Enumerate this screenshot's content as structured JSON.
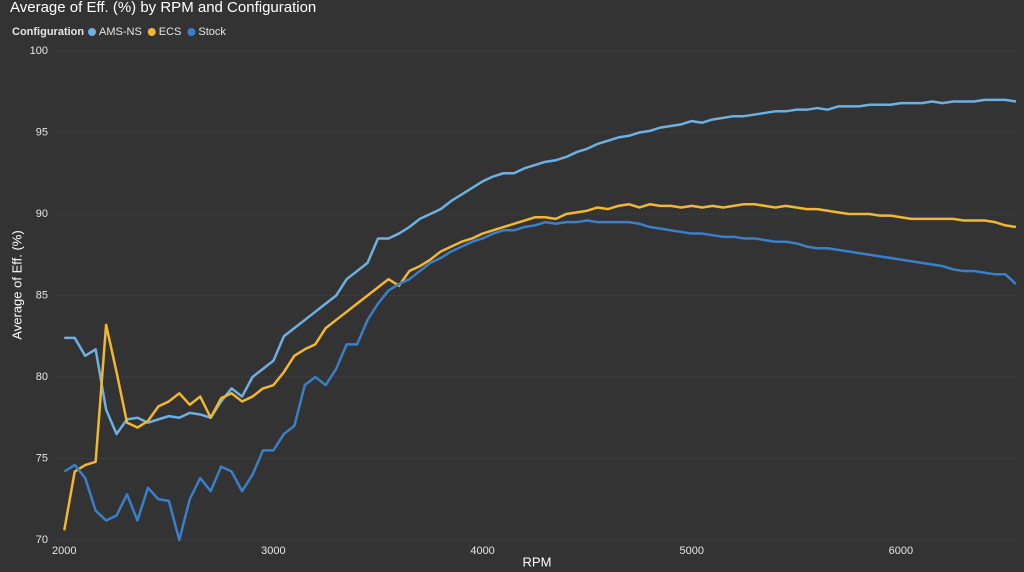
{
  "chart_data": {
    "type": "line",
    "title": "Average of Eff. (%) by RPM and Configuration",
    "legend_title": "Configuration",
    "x_label": "RPM",
    "y_label": "Average of Eff. (%)",
    "xlim": [
      1970,
      6560
    ],
    "ylim": [
      70,
      100
    ],
    "xticks": [
      2000,
      3000,
      4000,
      5000,
      6000
    ],
    "yticks": [
      70,
      75,
      80,
      85,
      90,
      95,
      100
    ],
    "grid": true,
    "x": [
      2000,
      2050,
      2100,
      2150,
      2200,
      2250,
      2300,
      2350,
      2400,
      2450,
      2500,
      2550,
      2600,
      2650,
      2700,
      2750,
      2800,
      2850,
      2900,
      2950,
      3000,
      3050,
      3100,
      3150,
      3200,
      3250,
      3300,
      3350,
      3400,
      3450,
      3500,
      3550,
      3600,
      3650,
      3700,
      3750,
      3800,
      3850,
      3900,
      3950,
      4000,
      4050,
      4100,
      4150,
      4200,
      4250,
      4300,
      4350,
      4400,
      4450,
      4500,
      4550,
      4600,
      4650,
      4700,
      4750,
      4800,
      4850,
      4900,
      4950,
      5000,
      5050,
      5100,
      5150,
      5200,
      5250,
      5300,
      5350,
      5400,
      5450,
      5500,
      5550,
      5600,
      5650,
      5700,
      5750,
      5800,
      5850,
      5900,
      5950,
      6000,
      6050,
      6100,
      6150,
      6200,
      6250,
      6300,
      6350,
      6400,
      6450,
      6500,
      6550
    ],
    "series": [
      {
        "name": "AMS-NS",
        "color": "#6cb0e4",
        "values": [
          82.4,
          82.4,
          81.3,
          81.7,
          78,
          76.5,
          77.4,
          77.5,
          77.2,
          77.4,
          77.6,
          77.5,
          77.8,
          77.7,
          77.5,
          78.5,
          79.3,
          78.8,
          80.0,
          80.5,
          81,
          82.5,
          83,
          83.5,
          84,
          84.5,
          85,
          86,
          86.5,
          87,
          88.5,
          88.5,
          88.8,
          89.2,
          89.7,
          90,
          90.3,
          90.8,
          91.2,
          91.6,
          92,
          92.3,
          92.5,
          92.5,
          92.8,
          93,
          93.2,
          93.3,
          93.5,
          93.8,
          94,
          94.3,
          94.5,
          94.7,
          94.8,
          95,
          95.1,
          95.3,
          95.4,
          95.5,
          95.7,
          95.6,
          95.8,
          95.9,
          96,
          96,
          96.1,
          96.2,
          96.3,
          96.3,
          96.4,
          96.4,
          96.5,
          96.4,
          96.6,
          96.6,
          96.6,
          96.7,
          96.7,
          96.7,
          96.8,
          96.8,
          96.8,
          96.9,
          96.8,
          96.9,
          96.9,
          96.9,
          97,
          97,
          97,
          96.9
        ]
      },
      {
        "name": "ECS",
        "color": "#f2b731",
        "values": [
          70.6,
          74.2,
          74.6,
          74.8,
          83.2,
          80.3,
          77.2,
          76.9,
          77.3,
          78.2,
          78.5,
          79,
          78.3,
          78.8,
          77.5,
          78.7,
          79,
          78.5,
          78.8,
          79.3,
          79.5,
          80.3,
          81.3,
          81.7,
          82,
          83,
          83.5,
          84,
          84.5,
          85,
          85.5,
          86,
          85.6,
          86.5,
          86.8,
          87.2,
          87.7,
          88,
          88.3,
          88.5,
          88.8,
          89,
          89.2,
          89.4,
          89.6,
          89.8,
          89.8,
          89.7,
          90,
          90.1,
          90.2,
          90.4,
          90.3,
          90.5,
          90.6,
          90.4,
          90.6,
          90.5,
          90.5,
          90.4,
          90.5,
          90.4,
          90.5,
          90.4,
          90.5,
          90.6,
          90.6,
          90.5,
          90.4,
          90.5,
          90.4,
          90.3,
          90.3,
          90.2,
          90.1,
          90,
          90,
          90,
          89.9,
          89.9,
          89.8,
          89.7,
          89.7,
          89.7,
          89.7,
          89.7,
          89.6,
          89.6,
          89.6,
          89.5,
          89.3,
          89.2
        ]
      },
      {
        "name": "Stock",
        "color": "#3a7fc9",
        "values": [
          74.2,
          74.6,
          73.8,
          71.8,
          71.2,
          71.5,
          72.8,
          71.2,
          73.2,
          72.5,
          72.4,
          70,
          72.5,
          73.8,
          73,
          74.5,
          74.2,
          73,
          74,
          75.5,
          75.5,
          76.5,
          77,
          79.5,
          80,
          79.5,
          80.5,
          82,
          82,
          83.5,
          84.5,
          85.3,
          85.7,
          86,
          86.5,
          87,
          87.3,
          87.7,
          88,
          88.3,
          88.5,
          88.8,
          89,
          89,
          89.2,
          89.3,
          89.5,
          89.4,
          89.5,
          89.5,
          89.6,
          89.5,
          89.5,
          89.5,
          89.5,
          89.4,
          89.2,
          89.1,
          89,
          88.9,
          88.8,
          88.8,
          88.7,
          88.6,
          88.6,
          88.5,
          88.5,
          88.4,
          88.3,
          88.3,
          88.2,
          88,
          87.9,
          87.9,
          87.8,
          87.7,
          87.6,
          87.5,
          87.4,
          87.3,
          87.2,
          87.1,
          87,
          86.9,
          86.8,
          86.6,
          86.5,
          86.5,
          86.4,
          86.3,
          86.3,
          85.7
        ]
      }
    ]
  }
}
